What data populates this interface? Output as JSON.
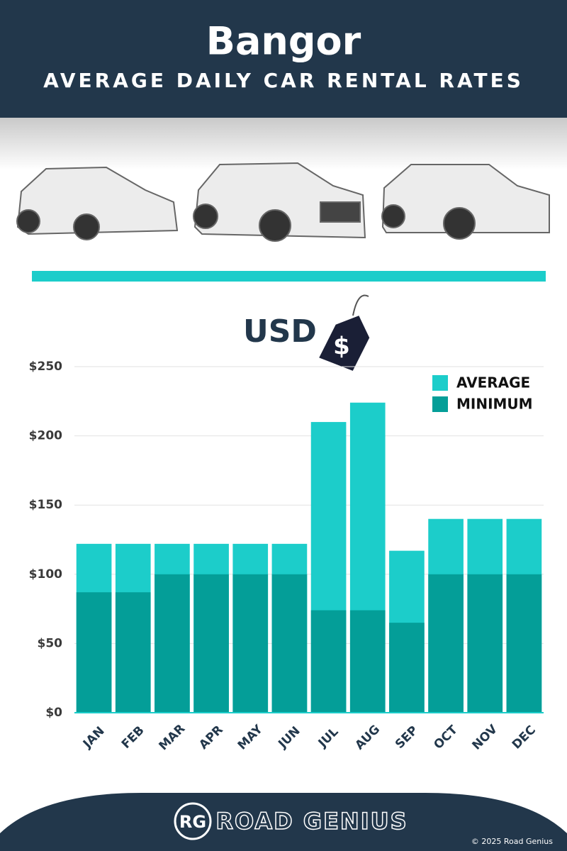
{
  "chart_data": {
    "type": "bar",
    "title": "Bangor",
    "subtitle": "AVERAGE DAILY CAR RENTAL RATES",
    "unit_label": "USD",
    "tag_label": "$",
    "categories": [
      "JAN",
      "FEB",
      "MAR",
      "APR",
      "MAY",
      "JUN",
      "JUL",
      "AUG",
      "SEP",
      "OCT",
      "NOV",
      "DEC"
    ],
    "series": [
      {
        "name": "AVERAGE",
        "color": "#1ccdca",
        "values": [
          122,
          122,
          122,
          122,
          122,
          122,
          210,
          224,
          117,
          140,
          140,
          140
        ]
      },
      {
        "name": "MINIMUM",
        "color": "#049e98",
        "values": [
          87,
          87,
          100,
          100,
          100,
          100,
          74,
          74,
          65,
          100,
          100,
          100
        ]
      }
    ],
    "ylim": [
      0,
      250
    ],
    "yticks": [
      {
        "value": 0,
        "label": "$0"
      },
      {
        "value": 50,
        "label": "$50"
      },
      {
        "value": 100,
        "label": "$100"
      },
      {
        "value": 150,
        "label": "$150"
      },
      {
        "value": 200,
        "label": "$200"
      },
      {
        "value": 250,
        "label": "$250"
      }
    ],
    "grid": true,
    "legend": "upper-right"
  },
  "footer": {
    "logo": "RG",
    "brand": "ROAD GENIUS",
    "copyright": "© 2025 Road Genius"
  }
}
